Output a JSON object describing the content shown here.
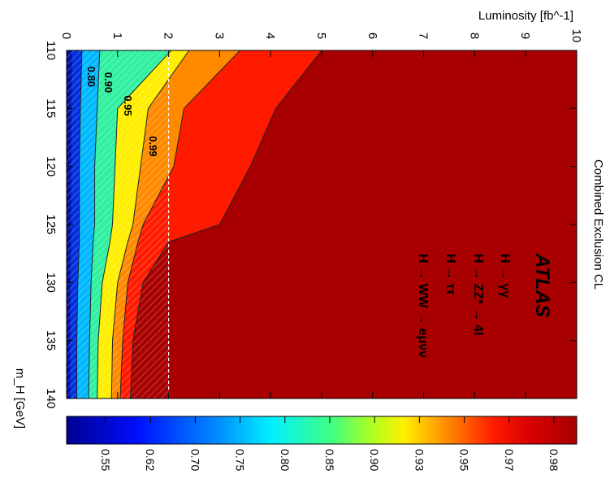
{
  "chart_data": {
    "type": "heatmap",
    "title": "Combined Exclusion CL",
    "xlabel": "m_H [GeV]",
    "ylabel": "Luminosity [fb^-1]",
    "xlim": [
      110,
      140
    ],
    "ylim": [
      0,
      10
    ],
    "x_ticks": [
      "110",
      "115",
      "120",
      "125",
      "130",
      "135",
      "140"
    ],
    "y_ticks": [
      "0",
      "1",
      "2",
      "3",
      "4",
      "5",
      "6",
      "7",
      "8",
      "9",
      "10"
    ],
    "x": [
      110,
      115,
      120,
      125,
      126.5,
      130,
      135,
      140
    ],
    "contours": [
      {
        "level": "0.80",
        "values": [
          0.3,
          0.27,
          0.25,
          0.25,
          0.25,
          0.22,
          0.2,
          0.2
        ]
      },
      {
        "level": "0.90",
        "values": [
          0.65,
          0.6,
          0.55,
          0.55,
          0.52,
          0.48,
          0.45,
          0.43
        ]
      },
      {
        "level": "0.95",
        "values": [
          2.05,
          1.0,
          0.95,
          0.9,
          0.85,
          0.7,
          0.62,
          0.6
        ]
      },
      {
        "level": "0.99",
        "values": [
          2.4,
          1.6,
          1.45,
          1.3,
          1.2,
          1.0,
          0.9,
          0.88
        ]
      },
      {
        "level": "",
        "values": [
          3.4,
          2.3,
          2.1,
          1.5,
          1.4,
          1.2,
          1.1,
          1.05
        ]
      },
      {
        "level": "",
        "values": [
          5.0,
          4.1,
          3.6,
          3.0,
          2.0,
          1.5,
          1.3,
          1.25
        ]
      }
    ],
    "exclusion_line": {
      "luminosity": 2.0
    },
    "colorbar": {
      "ticks": [
        "0.55",
        "0.62",
        "0.70",
        "0.75",
        "0.80",
        "0.85",
        "0.90",
        "0.93",
        "0.95",
        "0.97",
        "0.98"
      ]
    },
    "colors": {
      "dark_red": "#a80000",
      "red": "#ff1a00",
      "orange": "#ff7a00",
      "yellow": "#fff000",
      "green": "#78ff3a",
      "cyan": "#00e8ff",
      "blue": "#0040ff",
      "dark_blue": "#000090"
    },
    "annotations": {
      "experiment": "ATLAS",
      "channels": [
        "H → γγ",
        "H → ZZ* → 4l",
        "H → ττ",
        "H → WW → eμνν"
      ]
    }
  }
}
